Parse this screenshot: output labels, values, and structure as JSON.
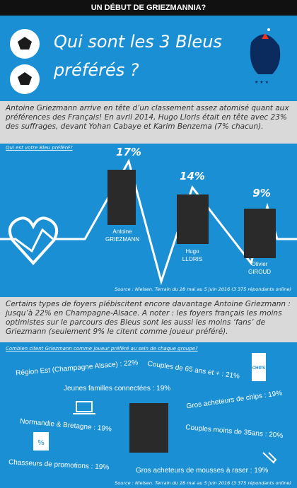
{
  "header": {
    "banner": "UN DÉBUT DE GRIEZMANNIA?",
    "title_lines": [
      "Qui sont les 3 Bleus",
      "préférés ?"
    ]
  },
  "intro": "Antoine Griezmann arrive en tête d’un classement assez atomisé quant aux préférences des Français! En avril 2014, Hugo Lloris était en tête avec 23% des suffrages, devant Yohan Cabaye et Karim Benzema (7% chacun).",
  "section1": {
    "link": "Qui est votre Bleu préféré?",
    "players": [
      {
        "percent": "17%",
        "first_name": "Antoine",
        "last_name": "GRIEZMANN"
      },
      {
        "percent": "14%",
        "first_name": "Hugo",
        "last_name": "LLORIS"
      },
      {
        "percent": "9%",
        "first_name": "Olivier",
        "last_name": "GIROUD"
      }
    ],
    "source": "Source : Nielsen. Terrain du 28 mai au 5 juin 2016 (3 375 répondants online)"
  },
  "section2": {
    "text": "Certains types de foyers plébiscitent encore davantage Antoine Griezmann : jusqu’à 22% en Champagne-Alsace. A noter : les foyers français les moins optimistes sur le parcours des Bleus sont les aussi les moins ‘fans’ de Griezmann (seulement 9% le citent comme joueur préféré).",
    "link": "Combien citent Griezmann comme joueur préféré au sein de chaque groupe?",
    "groups": [
      "Région Est (Champagne Alsace) : 22%",
      "Couples de 65 ans et + : 21%",
      "Jeunes familles connectées : 19%",
      "Gros acheteurs de chips : 19%",
      "Normandie & Bretagne : 19%",
      "Couples moins de 35ans : 20%",
      "Chasseurs de promotions : 19%",
      "Gros acheteurs de mousses à raser : 19%"
    ],
    "chips_label": "CHIPS",
    "source": "Source : Nielsen. Terrain du 28 mai au 5 juin 2016 (3 375 répondants online)"
  }
}
